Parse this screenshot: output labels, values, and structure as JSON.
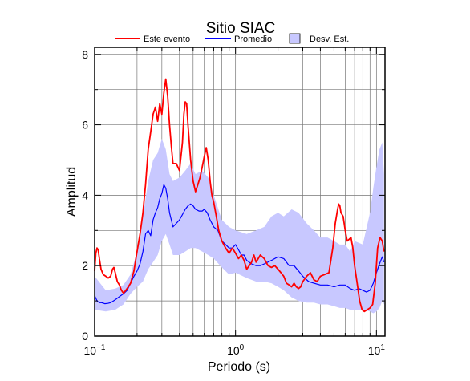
{
  "chart_data": {
    "type": "line",
    "title": "Sitio SIAC",
    "xlabel": "Periodo (s)",
    "ylabel": "Amplitud",
    "x_scale": "log",
    "xlim": [
      0.1,
      11.5
    ],
    "ylim": [
      0,
      8.2
    ],
    "grid": true,
    "legend_position": "top",
    "x_ticks": [
      {
        "value": 0.1,
        "base": "10",
        "exp": "−1"
      },
      {
        "value": 1,
        "base": "10",
        "exp": "0"
      },
      {
        "value": 10,
        "base": "10",
        "exp": "1"
      }
    ],
    "y_ticks": [
      0,
      2,
      4,
      6,
      8
    ],
    "legend": [
      {
        "label": "Este evento",
        "kind": "line",
        "color": "#ff0000"
      },
      {
        "label": "Promedio",
        "kind": "line",
        "color": "#0000ff"
      },
      {
        "label": "Desv. Est.",
        "kind": "patch",
        "color": "#c8c8ff"
      }
    ],
    "series": [
      {
        "name": "Este evento",
        "color": "#ff0000",
        "points": [
          [
            0.1,
            1.85
          ],
          [
            0.102,
            2.35
          ],
          [
            0.104,
            2.5
          ],
          [
            0.106,
            2.45
          ],
          [
            0.108,
            2.2
          ],
          [
            0.111,
            1.9
          ],
          [
            0.115,
            1.75
          ],
          [
            0.12,
            1.7
          ],
          [
            0.125,
            1.65
          ],
          [
            0.13,
            1.7
          ],
          [
            0.134,
            1.9
          ],
          [
            0.137,
            1.95
          ],
          [
            0.14,
            1.8
          ],
          [
            0.145,
            1.55
          ],
          [
            0.15,
            1.45
          ],
          [
            0.155,
            1.3
          ],
          [
            0.16,
            1.22
          ],
          [
            0.165,
            1.28
          ],
          [
            0.17,
            1.35
          ],
          [
            0.18,
            1.5
          ],
          [
            0.19,
            1.85
          ],
          [
            0.2,
            2.4
          ],
          [
            0.21,
            2.9
          ],
          [
            0.22,
            3.5
          ],
          [
            0.23,
            4.3
          ],
          [
            0.24,
            5.3
          ],
          [
            0.25,
            5.8
          ],
          [
            0.26,
            6.3
          ],
          [
            0.27,
            6.5
          ],
          [
            0.28,
            6.1
          ],
          [
            0.29,
            6.6
          ],
          [
            0.3,
            6.3
          ],
          [
            0.31,
            6.9
          ],
          [
            0.32,
            7.3
          ],
          [
            0.33,
            6.8
          ],
          [
            0.34,
            6.0
          ],
          [
            0.35,
            5.4
          ],
          [
            0.36,
            4.9
          ],
          [
            0.38,
            4.9
          ],
          [
            0.4,
            4.7
          ],
          [
            0.42,
            5.5
          ],
          [
            0.43,
            6.3
          ],
          [
            0.44,
            6.65
          ],
          [
            0.45,
            6.6
          ],
          [
            0.46,
            6.0
          ],
          [
            0.48,
            5.0
          ],
          [
            0.5,
            4.4
          ],
          [
            0.52,
            4.1
          ],
          [
            0.54,
            4.3
          ],
          [
            0.56,
            4.5
          ],
          [
            0.58,
            4.8
          ],
          [
            0.6,
            5.1
          ],
          [
            0.62,
            5.35
          ],
          [
            0.64,
            5.0
          ],
          [
            0.66,
            4.4
          ],
          [
            0.68,
            4.0
          ],
          [
            0.7,
            3.8
          ],
          [
            0.73,
            3.4
          ],
          [
            0.76,
            3.0
          ],
          [
            0.8,
            2.7
          ],
          [
            0.85,
            2.5
          ],
          [
            0.9,
            2.35
          ],
          [
            0.95,
            2.5
          ],
          [
            1.0,
            2.35
          ],
          [
            1.05,
            2.2
          ],
          [
            1.1,
            2.3
          ],
          [
            1.15,
            2.15
          ],
          [
            1.2,
            1.9
          ],
          [
            1.25,
            2.0
          ],
          [
            1.3,
            2.1
          ],
          [
            1.35,
            2.3
          ],
          [
            1.4,
            2.1
          ],
          [
            1.45,
            2.2
          ],
          [
            1.5,
            2.3
          ],
          [
            1.6,
            2.2
          ],
          [
            1.7,
            2.0
          ],
          [
            1.8,
            1.95
          ],
          [
            1.9,
            2.0
          ],
          [
            2.0,
            1.9
          ],
          [
            2.1,
            1.8
          ],
          [
            2.2,
            1.7
          ],
          [
            2.3,
            1.5
          ],
          [
            2.4,
            1.45
          ],
          [
            2.5,
            1.4
          ],
          [
            2.6,
            1.5
          ],
          [
            2.7,
            1.4
          ],
          [
            2.8,
            1.35
          ],
          [
            2.9,
            1.4
          ],
          [
            3.0,
            1.55
          ],
          [
            3.2,
            1.7
          ],
          [
            3.4,
            1.8
          ],
          [
            3.6,
            1.6
          ],
          [
            3.8,
            1.55
          ],
          [
            4.0,
            1.7
          ],
          [
            4.3,
            1.75
          ],
          [
            4.6,
            1.8
          ],
          [
            4.9,
            2.5
          ],
          [
            5.1,
            3.2
          ],
          [
            5.3,
            3.6
          ],
          [
            5.4,
            3.75
          ],
          [
            5.5,
            3.7
          ],
          [
            5.6,
            3.5
          ],
          [
            5.8,
            3.4
          ],
          [
            6.0,
            3.0
          ],
          [
            6.2,
            2.7
          ],
          [
            6.4,
            2.75
          ],
          [
            6.6,
            2.8
          ],
          [
            6.8,
            2.5
          ],
          [
            7.0,
            2.0
          ],
          [
            7.3,
            1.5
          ],
          [
            7.6,
            1.0
          ],
          [
            7.9,
            0.75
          ],
          [
            8.2,
            0.7
          ],
          [
            8.6,
            0.75
          ],
          [
            9.0,
            0.8
          ],
          [
            9.4,
            0.9
          ],
          [
            9.8,
            1.5
          ],
          [
            10.2,
            2.5
          ],
          [
            10.6,
            2.8
          ],
          [
            11.0,
            2.7
          ],
          [
            11.3,
            2.4
          ]
        ]
      },
      {
        "name": "Promedio",
        "color": "#0000ff",
        "points": [
          [
            0.1,
            1.15
          ],
          [
            0.104,
            1.0
          ],
          [
            0.108,
            0.95
          ],
          [
            0.112,
            0.95
          ],
          [
            0.118,
            0.92
          ],
          [
            0.124,
            0.93
          ],
          [
            0.13,
            0.95
          ],
          [
            0.136,
            1.0
          ],
          [
            0.142,
            1.05
          ],
          [
            0.15,
            1.12
          ],
          [
            0.16,
            1.2
          ],
          [
            0.17,
            1.3
          ],
          [
            0.18,
            1.5
          ],
          [
            0.19,
            1.7
          ],
          [
            0.2,
            1.85
          ],
          [
            0.21,
            2.05
          ],
          [
            0.22,
            2.4
          ],
          [
            0.23,
            2.9
          ],
          [
            0.24,
            3.0
          ],
          [
            0.25,
            2.85
          ],
          [
            0.26,
            3.3
          ],
          [
            0.27,
            3.5
          ],
          [
            0.28,
            3.65
          ],
          [
            0.29,
            3.9
          ],
          [
            0.3,
            4.05
          ],
          [
            0.31,
            4.3
          ],
          [
            0.32,
            4.2
          ],
          [
            0.33,
            3.9
          ],
          [
            0.34,
            3.5
          ],
          [
            0.35,
            3.3
          ],
          [
            0.36,
            3.1
          ],
          [
            0.38,
            3.2
          ],
          [
            0.4,
            3.3
          ],
          [
            0.42,
            3.45
          ],
          [
            0.44,
            3.6
          ],
          [
            0.46,
            3.7
          ],
          [
            0.48,
            3.75
          ],
          [
            0.5,
            3.7
          ],
          [
            0.52,
            3.6
          ],
          [
            0.55,
            3.55
          ],
          [
            0.58,
            3.55
          ],
          [
            0.6,
            3.6
          ],
          [
            0.63,
            3.5
          ],
          [
            0.66,
            3.3
          ],
          [
            0.7,
            3.1
          ],
          [
            0.75,
            3.0
          ],
          [
            0.8,
            2.7
          ],
          [
            0.85,
            2.6
          ],
          [
            0.9,
            2.5
          ],
          [
            0.95,
            2.5
          ],
          [
            1.0,
            2.6
          ],
          [
            1.05,
            2.45
          ],
          [
            1.1,
            2.3
          ],
          [
            1.15,
            2.3
          ],
          [
            1.2,
            2.15
          ],
          [
            1.3,
            2.05
          ],
          [
            1.4,
            2.0
          ],
          [
            1.5,
            2.0
          ],
          [
            1.6,
            2.05
          ],
          [
            1.8,
            2.15
          ],
          [
            2.0,
            2.25
          ],
          [
            2.2,
            2.2
          ],
          [
            2.4,
            2.0
          ],
          [
            2.6,
            2.0
          ],
          [
            2.8,
            1.85
          ],
          [
            3.0,
            1.7
          ],
          [
            3.3,
            1.55
          ],
          [
            3.6,
            1.5
          ],
          [
            4.0,
            1.45
          ],
          [
            4.5,
            1.45
          ],
          [
            5.0,
            1.4
          ],
          [
            5.5,
            1.45
          ],
          [
            6.0,
            1.45
          ],
          [
            6.5,
            1.35
          ],
          [
            7.0,
            1.3
          ],
          [
            7.5,
            1.35
          ],
          [
            8.0,
            1.3
          ],
          [
            8.5,
            1.25
          ],
          [
            9.0,
            1.3
          ],
          [
            9.5,
            1.5
          ],
          [
            10.0,
            1.8
          ],
          [
            10.5,
            2.05
          ],
          [
            11.0,
            2.25
          ],
          [
            11.3,
            2.1
          ]
        ]
      }
    ],
    "band": {
      "name": "Desv. Est.",
      "color": "#c8c8ff",
      "x": [
        0.1,
        0.12,
        0.14,
        0.16,
        0.18,
        0.2,
        0.22,
        0.24,
        0.26,
        0.28,
        0.3,
        0.32,
        0.34,
        0.36,
        0.4,
        0.44,
        0.48,
        0.52,
        0.58,
        0.64,
        0.7,
        0.8,
        0.9,
        1.0,
        1.2,
        1.4,
        1.6,
        1.8,
        2.0,
        2.2,
        2.5,
        2.8,
        3.2,
        3.6,
        4.0,
        4.5,
        5.0,
        5.5,
        6.0,
        6.5,
        7.0,
        8.0,
        9.0,
        9.5,
        10.0,
        10.5,
        11.0,
        11.3
      ],
      "upper": [
        1.7,
        1.3,
        1.35,
        1.45,
        1.75,
        2.4,
        3.4,
        4.4,
        5.0,
        5.2,
        5.6,
        5.3,
        4.6,
        4.4,
        4.5,
        4.7,
        4.9,
        4.6,
        4.7,
        4.5,
        4.0,
        3.3,
        3.1,
        3.0,
        2.9,
        3.0,
        3.1,
        3.4,
        3.5,
        3.4,
        3.6,
        3.5,
        3.2,
        3.0,
        2.8,
        2.8,
        2.7,
        2.6,
        2.6,
        2.4,
        2.7,
        2.6,
        3.5,
        4.2,
        4.8,
        5.3,
        5.5,
        4.6
      ],
      "lower": [
        0.75,
        0.7,
        0.75,
        0.9,
        1.2,
        1.4,
        1.55,
        1.9,
        2.1,
        2.3,
        2.7,
        2.9,
        2.6,
        2.3,
        2.3,
        2.4,
        2.5,
        2.5,
        2.4,
        2.3,
        2.2,
        1.95,
        1.75,
        1.8,
        1.65,
        1.55,
        1.55,
        1.5,
        1.4,
        1.3,
        1.1,
        1.0,
        0.95,
        0.95,
        0.9,
        0.9,
        0.85,
        0.8,
        0.8,
        0.75,
        0.75,
        0.75,
        0.7,
        0.65,
        0.7,
        0.8,
        1.0,
        0.9
      ]
    }
  }
}
